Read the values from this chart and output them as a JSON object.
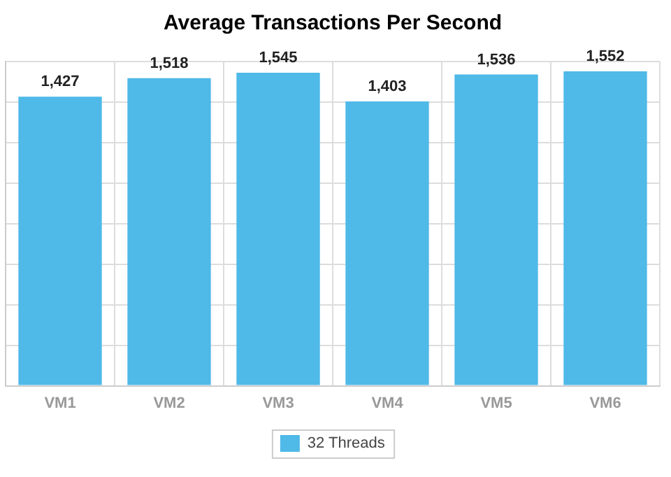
{
  "chart_data": {
    "type": "bar",
    "title": "Average Transactions Per Second",
    "categories": [
      "VM1",
      "VM2",
      "VM3",
      "VM4",
      "VM5",
      "VM6"
    ],
    "series": [
      {
        "name": "32 Threads",
        "color": "#4fb9e8",
        "values": [
          1427,
          1518,
          1545,
          1403,
          1536,
          1552
        ],
        "value_labels": [
          "1,427",
          "1,518",
          "1,545",
          "1,403",
          "1,536",
          "1,552"
        ]
      }
    ],
    "tick_labels": "x",
    "grid": true,
    "legend": "bottom"
  }
}
